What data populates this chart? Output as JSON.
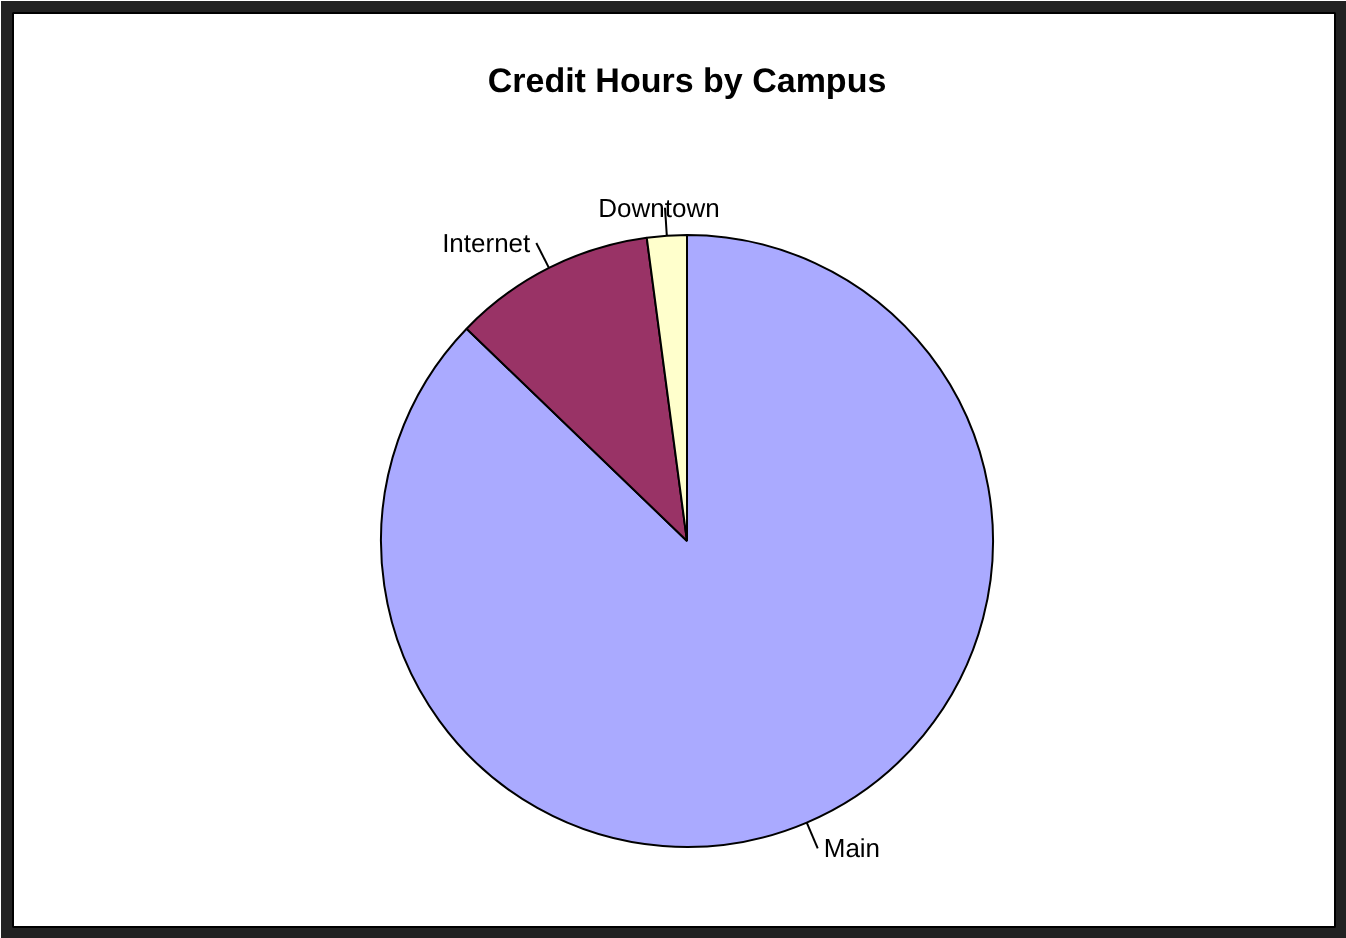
{
  "chart_data": {
    "type": "pie",
    "title": "Credit Hours by Campus",
    "categories": [
      "Main",
      "Internet",
      "Downtown"
    ],
    "values": [
      87.2,
      10.7,
      2.1
    ],
    "colors": [
      "#aaaaff",
      "#993366",
      "#ffffcc"
    ]
  }
}
